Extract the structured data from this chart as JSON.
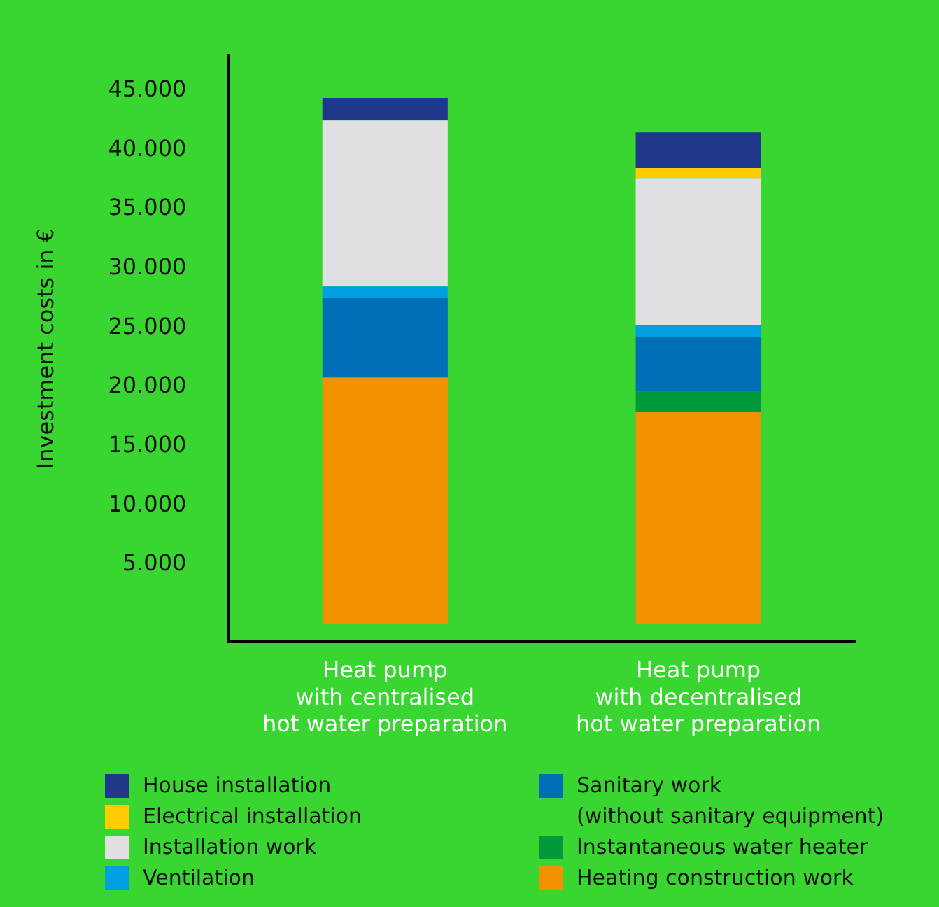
{
  "chart_data": {
    "type": "bar",
    "stacked": true,
    "ylabel": "Investment costs in €",
    "categories": [
      "Heat pump\nwith centralised\nhot water preparation",
      "Heat pump\nwith decentralised\nhot water preparation"
    ],
    "ylim": [
      -1500,
      48000
    ],
    "yticks": [
      {
        "value": 5000,
        "label": "5.000"
      },
      {
        "value": 10000,
        "label": "10.000"
      },
      {
        "value": 15000,
        "label": "15.000"
      },
      {
        "value": 20000,
        "label": "20.000"
      },
      {
        "value": 25000,
        "label": "25.000"
      },
      {
        "value": 30000,
        "label": "30.000"
      },
      {
        "value": 35000,
        "label": "35.000"
      },
      {
        "value": 40000,
        "label": "40.000"
      },
      {
        "value": 45000,
        "label": "45.000"
      }
    ],
    "grid": false,
    "legend": "bottom",
    "series": [
      {
        "name": "Heating construction work",
        "color": "#f39200",
        "values": [
          20800,
          17900
        ]
      },
      {
        "name": "Instantaneous water heater",
        "color": "#009a3e",
        "values": [
          null,
          1700
        ]
      },
      {
        "name": "Sanitary work\n(without sanitary equipment)",
        "color": "#006eb7",
        "values": [
          6700,
          4600
        ]
      },
      {
        "name": "Ventilation",
        "color": "#00a0e0",
        "values": [
          1000,
          1000
        ]
      },
      {
        "name": "Installation work",
        "color": "#e0e0e2",
        "values": [
          14000,
          12400
        ]
      },
      {
        "name": "Electrical installation",
        "color": "#ffcc00",
        "values": [
          null,
          900
        ]
      },
      {
        "name": "House installation",
        "color": "#1f388c",
        "values": [
          1900,
          3000
        ]
      }
    ]
  }
}
